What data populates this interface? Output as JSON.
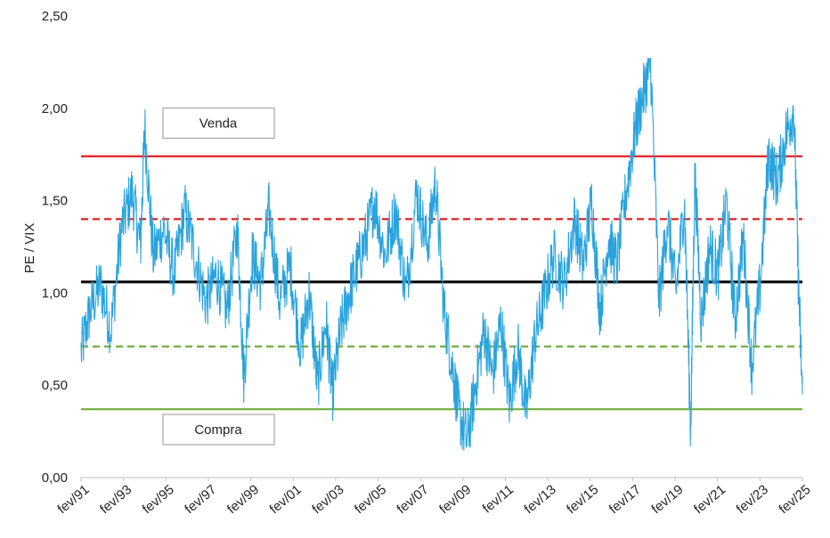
{
  "chart_data": {
    "type": "line",
    "title": "",
    "ylabel": "PE / VIX",
    "xlabel": "",
    "ylim": [
      0,
      2.5
    ],
    "yticks": [
      "0,00",
      "0,50",
      "1,00",
      "1,50",
      "2,00",
      "2,50"
    ],
    "ytick_values": [
      0,
      0.5,
      1.0,
      1.5,
      2.0,
      2.5
    ],
    "xticks": [
      "fev/91",
      "fev/93",
      "fev/95",
      "fev/97",
      "fev/99",
      "fev/01",
      "fev/03",
      "fev/05",
      "fev/07",
      "fev/09",
      "fev/11",
      "fev/13",
      "fev/15",
      "fev/17",
      "fev/19",
      "fev/21",
      "fev/23",
      "fev/25"
    ],
    "x_start": 1991.08,
    "x_end": 2025.3,
    "grid": false,
    "colors": {
      "series": "#29a3dd",
      "sell": "#e31e24",
      "sell_warn": "#e31e24",
      "mean": "#000000",
      "buy_warn": "#6fae3f",
      "buy": "#6fae3f"
    },
    "series": [
      {
        "x": [
          1991.08,
          1991.5,
          1992.0,
          1992.5,
          1993.0,
          1993.5,
          1993.9,
          1994.1,
          1994.5,
          1995.0,
          1995.5,
          1996.0,
          1996.5,
          1997.0,
          1997.5,
          1998.0,
          1998.5,
          1998.8,
          1999.2,
          1999.6,
          2000.0,
          2000.5,
          2001.0,
          2001.5,
          2001.9,
          2002.3,
          2002.7,
          2003.0,
          2003.4,
          2003.8,
          2004.2,
          2004.6,
          2005.0,
          2005.5,
          2006.0,
          2006.5,
          2007.0,
          2007.5,
          2007.9,
          2008.3,
          2008.7,
          2009.0,
          2009.4,
          2009.8,
          2010.2,
          2010.6,
          2011.0,
          2011.4,
          2011.8,
          2012.2,
          2012.6,
          2013.0,
          2013.5,
          2014.0,
          2014.5,
          2014.9,
          2015.3,
          2015.7,
          2016.1,
          2016.5,
          2017.0,
          2017.4,
          2017.8,
          2018.1,
          2018.5,
          2018.9,
          2019.3,
          2019.7,
          2020.0,
          2020.2,
          2020.5,
          2020.9,
          2021.3,
          2021.7,
          2022.1,
          2022.5,
          2022.9,
          2023.3,
          2023.7,
          2024.1,
          2024.5,
          2024.9,
          2025.1,
          2025.3
        ],
        "y": [
          0.68,
          0.9,
          1.05,
          0.8,
          1.35,
          1.55,
          1.25,
          1.9,
          1.2,
          1.35,
          1.1,
          1.45,
          1.2,
          0.95,
          1.1,
          0.9,
          1.35,
          0.55,
          1.2,
          1.05,
          1.45,
          0.95,
          1.15,
          0.7,
          1.0,
          0.5,
          0.85,
          0.45,
          0.8,
          1.0,
          1.15,
          1.3,
          1.5,
          1.2,
          1.45,
          1.0,
          1.55,
          1.25,
          1.6,
          0.9,
          0.6,
          0.35,
          0.2,
          0.5,
          0.8,
          0.55,
          0.85,
          0.4,
          0.7,
          0.35,
          0.75,
          0.95,
          1.2,
          1.05,
          1.4,
          1.15,
          1.5,
          0.9,
          1.3,
          1.15,
          1.6,
          1.9,
          2.1,
          2.25,
          0.95,
          1.4,
          1.0,
          1.5,
          0.25,
          1.65,
          0.85,
          1.25,
          1.1,
          1.5,
          0.85,
          1.3,
          0.6,
          1.05,
          1.75,
          1.6,
          1.85,
          2.0,
          1.1,
          0.45
        ]
      }
    ],
    "reference_lines": [
      {
        "name": "sell",
        "y": 1.74,
        "style": "solid"
      },
      {
        "name": "sell_warn",
        "y": 1.4,
        "style": "dashed"
      },
      {
        "name": "mean",
        "y": 1.06,
        "style": "solid"
      },
      {
        "name": "buy_warn",
        "y": 0.71,
        "style": "dashed"
      },
      {
        "name": "buy",
        "y": 0.37,
        "style": "solid"
      }
    ],
    "annotations": [
      {
        "text": "Venda",
        "y": 1.92
      },
      {
        "text": "Compra",
        "y": 0.26
      }
    ]
  }
}
